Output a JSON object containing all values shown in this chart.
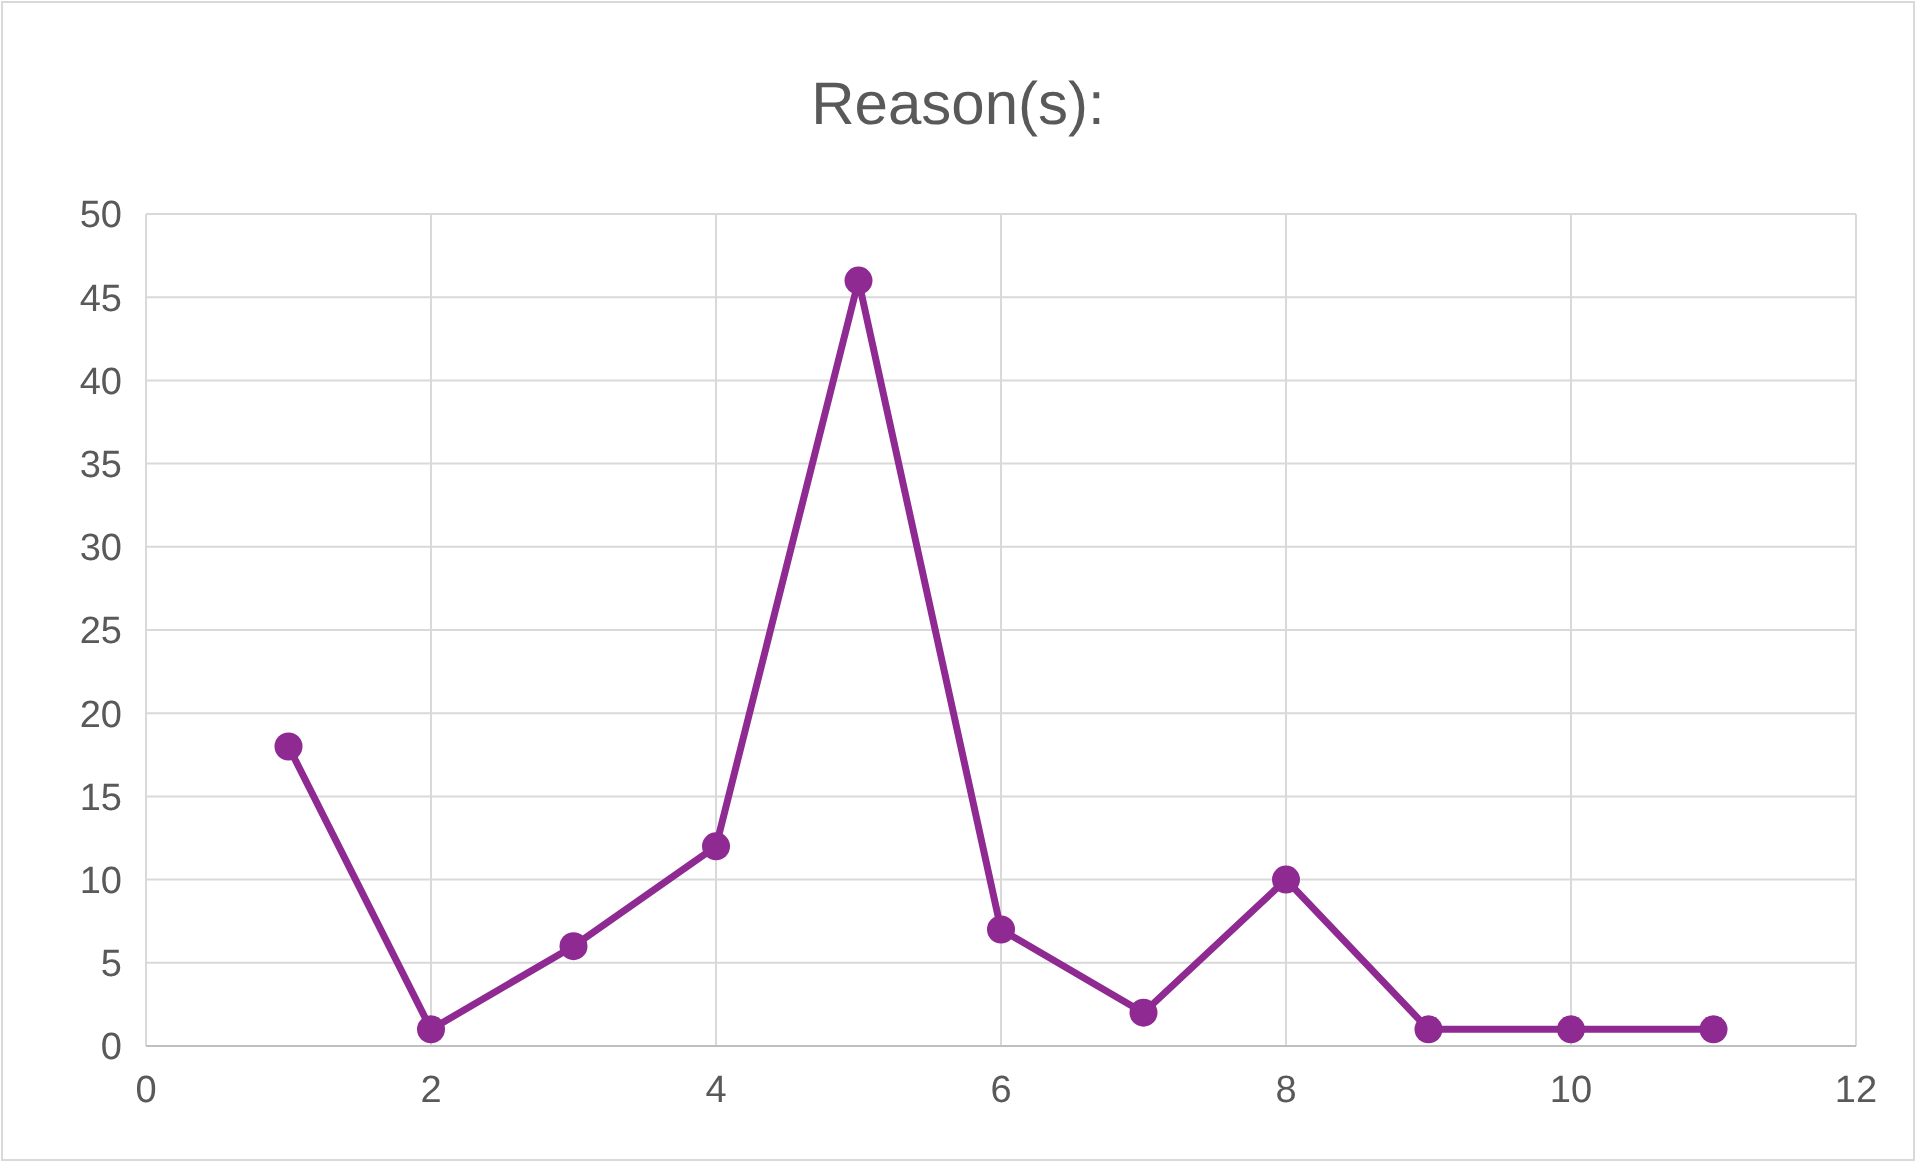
{
  "chart_data": {
    "type": "line",
    "title": "Reason(s):",
    "x": [
      1,
      2,
      3,
      4,
      5,
      6,
      7,
      8,
      9,
      10,
      11
    ],
    "series": [
      {
        "color": "#8e2a92",
        "values": [
          18,
          1,
          6,
          12,
          46,
          7,
          2,
          10,
          1,
          1,
          1
        ]
      }
    ],
    "xlim": [
      0,
      12
    ],
    "xticks": [
      0,
      2,
      4,
      6,
      8,
      10,
      12
    ],
    "ylim": [
      0,
      50
    ],
    "yticks": [
      0,
      5,
      10,
      15,
      20,
      25,
      30,
      35,
      40,
      45,
      50
    ],
    "grid": true,
    "marker": "circle",
    "line_style": "solid"
  }
}
